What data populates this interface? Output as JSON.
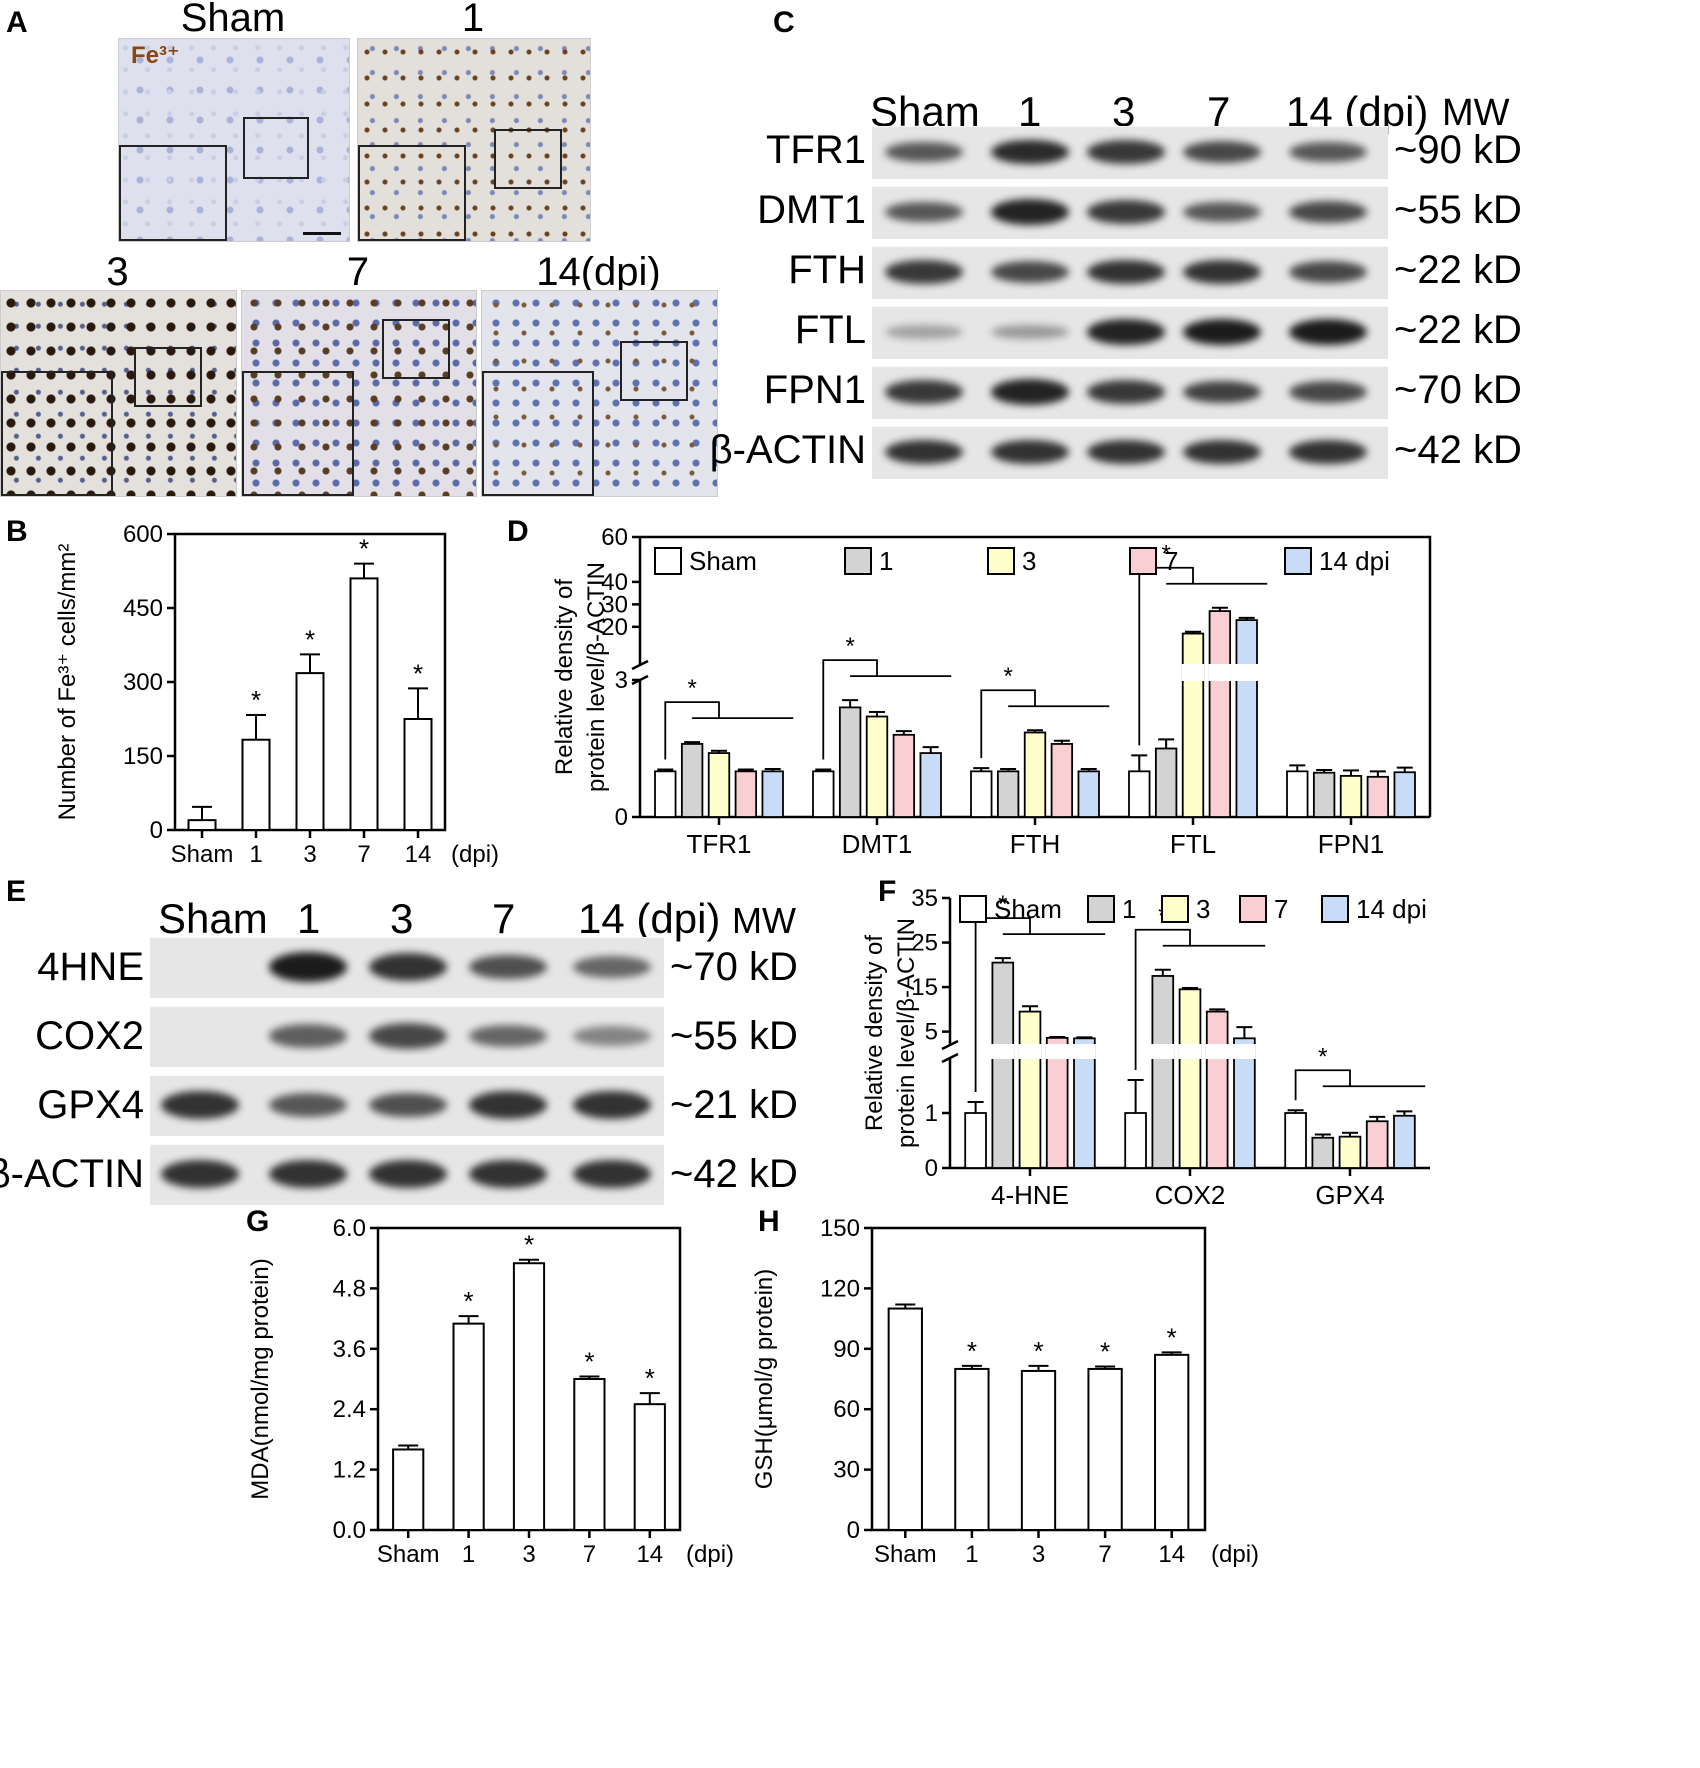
{
  "panels": {
    "A": {
      "letter": "A",
      "stain": "Fe³⁺",
      "images": [
        {
          "label": "Sham"
        },
        {
          "label": "1"
        },
        {
          "label": "3"
        },
        {
          "label": "7"
        },
        {
          "label": "14(dpi)"
        }
      ]
    },
    "C": {
      "letter": "C",
      "lanes": [
        "Sham",
        "1",
        "3",
        "7",
        "14 (dpi)"
      ],
      "mw_header": "MW",
      "blots": [
        {
          "label": "TFR1",
          "mw": "~90 kD"
        },
        {
          "label": "DMT1",
          "mw": "~55 kD"
        },
        {
          "label": "FTH",
          "mw": "~22 kD"
        },
        {
          "label": "FTL",
          "mw": "~22 kD"
        },
        {
          "label": "FPN1",
          "mw": "~70 kD"
        },
        {
          "label": "β-ACTIN",
          "mw": "~42 kD"
        }
      ]
    },
    "E": {
      "letter": "E",
      "lanes": [
        "Sham",
        "1",
        "3",
        "7",
        "14 (dpi)"
      ],
      "mw_header": "MW",
      "blots": [
        {
          "label": "4HNE",
          "mw": "~70 kD"
        },
        {
          "label": "COX2",
          "mw": "~55 kD"
        },
        {
          "label": "GPX4",
          "mw": "~21 kD"
        },
        {
          "label": "β-ACTIN",
          "mw": "~42 kD"
        }
      ]
    },
    "B": {
      "letter": "B"
    },
    "D": {
      "letter": "D"
    },
    "F": {
      "letter": "F"
    },
    "G": {
      "letter": "G"
    },
    "H": {
      "letter": "H"
    }
  },
  "chart_data": [
    {
      "id": "B",
      "type": "bar",
      "ylabel": "Number of Fe³⁺ cells/mm²",
      "categories": [
        "Sham",
        "1",
        "3",
        "7",
        "14"
      ],
      "x_suffix": "(dpi)",
      "values": [
        20,
        183,
        318,
        510,
        225
      ],
      "errors": [
        27,
        50,
        38,
        30,
        62
      ],
      "significant": [
        false,
        true,
        true,
        true,
        true
      ],
      "significance_mark": "*",
      "ylim": [
        0,
        600
      ],
      "yticks": [
        "0",
        "150",
        "300",
        "450",
        "600"
      ]
    },
    {
      "id": "D",
      "type": "bar",
      "ylabel": [
        "Relative density of",
        "protein level/β-ACTIN"
      ],
      "groups": [
        "TFR1",
        "DMT1",
        "FTH",
        "FTL",
        "FPN1"
      ],
      "series": [
        {
          "name": "Sham",
          "color": "#ffffff",
          "values": [
            1.0,
            1.0,
            1.0,
            1.0,
            1.0
          ],
          "errors": [
            0.04,
            0.04,
            0.07,
            0.35,
            0.13
          ]
        },
        {
          "name": "1",
          "color": "#d3d3d3",
          "values": [
            1.6,
            2.4,
            1.0,
            1.5,
            0.97
          ],
          "errors": [
            0.04,
            0.16,
            0.05,
            0.2,
            0.06
          ]
        },
        {
          "name": "3",
          "color": "#ffffcc",
          "values": [
            1.4,
            2.2,
            1.85,
            17,
            0.9
          ],
          "errors": [
            0.05,
            0.1,
            0.05,
            0.8,
            0.12
          ]
        },
        {
          "name": "7",
          "color": "#f9cfd4",
          "values": [
            1.0,
            1.8,
            1.6,
            27,
            0.88
          ],
          "errors": [
            0.04,
            0.08,
            0.07,
            1.5,
            0.12
          ]
        },
        {
          "name": "14 dpi",
          "color": "#c8dcf7",
          "values": [
            1.0,
            1.4,
            1.0,
            23,
            0.98
          ],
          "errors": [
            0.05,
            0.13,
            0.05,
            1.0,
            0.1
          ]
        }
      ],
      "axis_break": {
        "lower": [
          0,
          3
        ],
        "upper": [
          3,
          60
        ]
      },
      "yticks": [
        "0",
        "3",
        "20",
        "30",
        "40",
        "60"
      ],
      "significant_groups": [
        "TFR1",
        "DMT1",
        "FTH",
        "FTL"
      ],
      "significance_mark": "*"
    },
    {
      "id": "F",
      "type": "bar",
      "ylabel": [
        "Relative density of",
        "protein level/β-ACTIN"
      ],
      "groups": [
        "4-HNE",
        "COX2",
        "GPX4"
      ],
      "series": [
        {
          "name": "Sham",
          "color": "#ffffff",
          "values": [
            1.0,
            1.0,
            1.0
          ],
          "errors": [
            0.2,
            0.6,
            0.05
          ]
        },
        {
          "name": "1",
          "color": "#d3d3d3",
          "values": [
            20.5,
            17.5,
            0.55
          ],
          "errors": [
            1.0,
            1.4,
            0.06
          ]
        },
        {
          "name": "3",
          "color": "#ffffcc",
          "values": [
            9.5,
            14.5,
            0.57
          ],
          "errors": [
            1.2,
            0.3,
            0.07
          ]
        },
        {
          "name": "7",
          "color": "#f9cfd4",
          "values": [
            3.6,
            9.5,
            0.85
          ],
          "errors": [
            0.2,
            0.5,
            0.08
          ]
        },
        {
          "name": "14 dpi",
          "color": "#c8dcf7",
          "values": [
            3.5,
            3.5,
            0.95
          ],
          "errors": [
            0.2,
            2.5,
            0.08
          ]
        }
      ],
      "axis_break": {
        "lower": [
          0,
          2
        ],
        "upper": [
          2,
          35
        ]
      },
      "yticks": [
        "0",
        "1",
        "5",
        "15",
        "25",
        "35"
      ],
      "significant_groups": [
        "4-HNE",
        "COX2",
        "GPX4"
      ],
      "significance_mark": "*"
    },
    {
      "id": "G",
      "type": "bar",
      "ylabel": "MDA(nmol/mg protein)",
      "categories": [
        "Sham",
        "1",
        "3",
        "7",
        "14"
      ],
      "x_suffix": "(dpi)",
      "values": [
        1.6,
        4.1,
        5.3,
        3.0,
        2.5
      ],
      "errors": [
        0.08,
        0.15,
        0.07,
        0.05,
        0.22
      ],
      "significant": [
        false,
        true,
        true,
        true,
        true
      ],
      "significance_mark": "*",
      "ylim": [
        0,
        6
      ],
      "yticks": [
        "0.0",
        "1.2",
        "2.4",
        "3.6",
        "4.8",
        "6.0"
      ]
    },
    {
      "id": "H",
      "type": "bar",
      "ylabel": "GSH(μmol/g protein)",
      "categories": [
        "Sham",
        "1",
        "3",
        "7",
        "14"
      ],
      "x_suffix": "(dpi)",
      "values": [
        110,
        80,
        79,
        80,
        87
      ],
      "errors": [
        2,
        1.5,
        2.5,
        1.2,
        1.2
      ],
      "significant": [
        false,
        true,
        true,
        true,
        true
      ],
      "significance_mark": "*",
      "ylim": [
        0,
        150
      ],
      "yticks": [
        "0",
        "30",
        "60",
        "90",
        "120",
        "150"
      ]
    }
  ]
}
